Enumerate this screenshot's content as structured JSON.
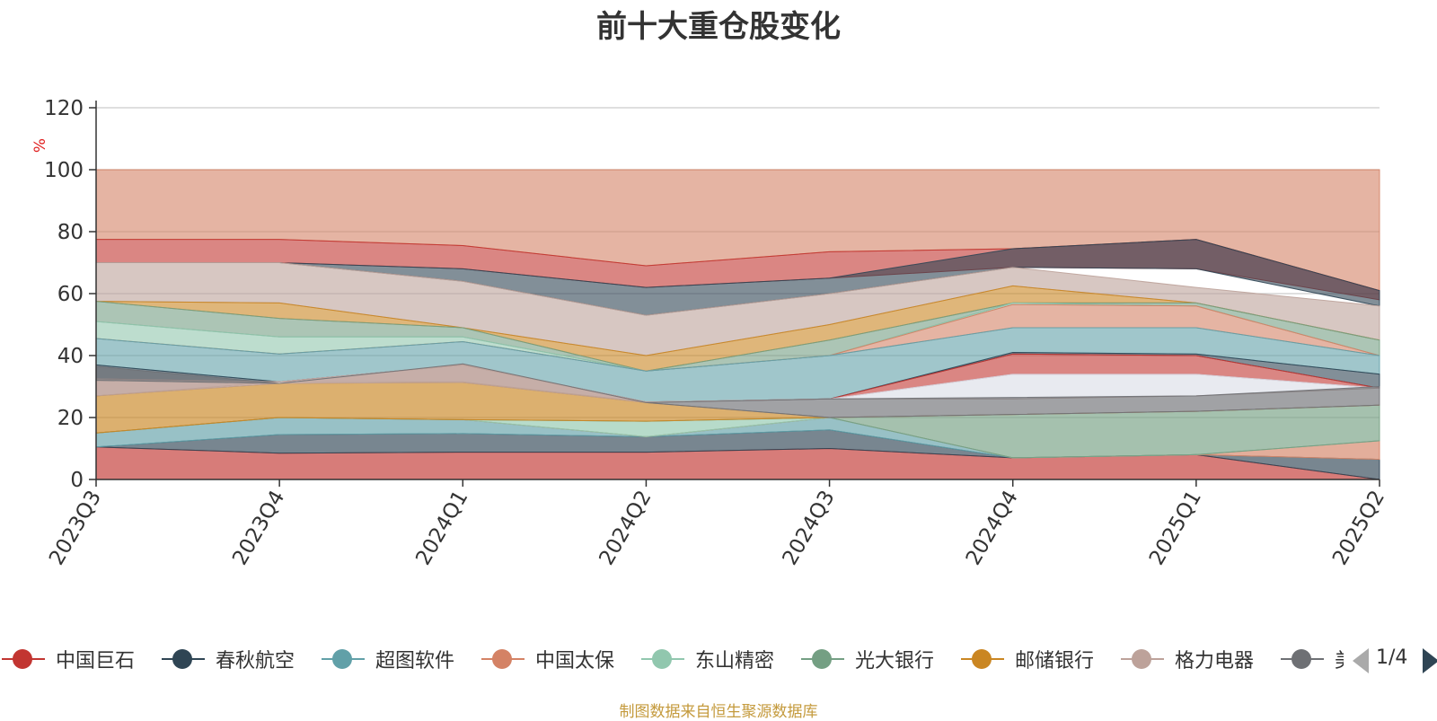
{
  "chart_data": {
    "type": "area",
    "stacked": true,
    "title": "前十大重仓股变化",
    "ylabel": "%",
    "ylim": [
      0,
      120
    ],
    "yticks": [
      0,
      20,
      40,
      60,
      80,
      100,
      120
    ],
    "grid": true,
    "legend_position": "bottom",
    "categories": [
      "2023Q3",
      "2023Q4",
      "2024Q1",
      "2024Q2",
      "2024Q3",
      "2024Q4",
      "2025Q1",
      "2025Q2"
    ],
    "series": [
      {
        "name": "中国巨石",
        "color": "#c23531",
        "values": [
          10.5,
          8.5,
          8.8,
          8.8,
          10,
          7,
          8,
          0
        ]
      },
      {
        "name": "春秋航空",
        "color": "#2f4554",
        "values": [
          0,
          6,
          6,
          5,
          6,
          0,
          0,
          6.5
        ]
      },
      {
        "name": "超图软件",
        "color": "#61a0a8",
        "values": [
          4.5,
          5.5,
          4.5,
          0,
          4,
          0,
          0,
          0
        ]
      },
      {
        "name": "中国太保",
        "color": "#d48265",
        "values": [
          0,
          0,
          0,
          0,
          0,
          0,
          0,
          6
        ]
      },
      {
        "name": "东山精密",
        "color": "#91c7ae",
        "values": [
          0,
          0,
          0,
          5,
          0,
          0,
          0,
          0
        ]
      },
      {
        "name": "光大银行",
        "color": "#749f83",
        "values": [
          0,
          0,
          0,
          0,
          0,
          14,
          14,
          11.5
        ]
      },
      {
        "name": "邮储银行",
        "color": "#ca8622",
        "values": [
          12,
          11,
          12,
          6,
          0,
          0,
          0,
          0
        ]
      },
      {
        "name": "格力电器",
        "color": "#bda29a",
        "values": [
          5,
          0,
          6,
          0,
          0,
          0,
          0,
          0
        ]
      },
      {
        "name": "美的集团",
        "color": "#6e7074",
        "values": [
          4.5,
          0,
          0,
          0,
          6,
          5.5,
          5,
          6
        ]
      }
    ]
  },
  "legend": {
    "page_indicator": "1/4",
    "items": [
      {
        "name": "中国巨石",
        "color": "#c23531"
      },
      {
        "name": "春秋航空",
        "color": "#2f4554"
      },
      {
        "name": "超图软件",
        "color": "#61a0a8"
      },
      {
        "name": "中国太保",
        "color": "#d48265"
      },
      {
        "name": "东山精密",
        "color": "#91c7ae"
      },
      {
        "name": "光大银行",
        "color": "#749f83"
      },
      {
        "name": "邮储银行",
        "color": "#ca8622"
      },
      {
        "name": "格力电器",
        "color": "#bda29a"
      },
      {
        "name": "美",
        "color": "#6e7074"
      }
    ]
  },
  "footer": {
    "source_note": "制图数据来自恒生聚源数据库"
  },
  "decor_bands": [
    {
      "color": "#d48265",
      "upper": [
        100,
        100,
        100,
        100,
        100,
        100,
        100,
        100
      ],
      "lower": [
        77.5,
        77.5,
        75.5,
        69,
        73.5,
        74.5,
        77.5,
        61
      ]
    },
    {
      "color": "#c23531",
      "upper": [
        77.5,
        77.5,
        75.5,
        69,
        73.5,
        74.5,
        77.5,
        61
      ],
      "lower": [
        70,
        70,
        68,
        62,
        65,
        68.5,
        68,
        58
      ]
    },
    {
      "color": "#2f4554",
      "upper": [
        70,
        70,
        68,
        62,
        65,
        74.5,
        77.5,
        61
      ],
      "lower": [
        70,
        70,
        64,
        53,
        60,
        68.5,
        68,
        56
      ]
    },
    {
      "color": "#bda29a",
      "upper": [
        70,
        70,
        64,
        53,
        60,
        68.5,
        62,
        56
      ],
      "lower": [
        57.5,
        57,
        49,
        40,
        50,
        62.5,
        57,
        45
      ]
    },
    {
      "color": "#ca8622",
      "upper": [
        57.5,
        57,
        49,
        40,
        50,
        62.5,
        57,
        45
      ],
      "lower": [
        57.5,
        52,
        49,
        35,
        45,
        57,
        57,
        45
      ]
    },
    {
      "color": "#749f83",
      "upper": [
        57.5,
        52,
        49,
        35,
        45,
        57,
        57,
        45
      ],
      "lower": [
        51,
        46,
        46,
        35,
        40,
        57,
        56,
        40
      ]
    },
    {
      "color": "#91c7ae",
      "upper": [
        51,
        46,
        46,
        35,
        40,
        57,
        56,
        40
      ],
      "lower": [
        45.5,
        40.5,
        44.5,
        35,
        40,
        56.5,
        56,
        40
      ]
    },
    {
      "color": "#d48265",
      "upper": [
        45.5,
        40.5,
        44.5,
        35,
        40,
        56.5,
        56,
        40
      ],
      "lower": [
        45.5,
        40.5,
        44.5,
        35,
        40,
        49,
        49,
        40
      ]
    },
    {
      "color": "#61a0a8",
      "upper": [
        45.5,
        40.5,
        44.5,
        35,
        40,
        49,
        49,
        40
      ],
      "lower": [
        37,
        31.5,
        37,
        25,
        26,
        41,
        40.5,
        34
      ]
    },
    {
      "color": "#2f4554",
      "upper": [
        37,
        31.5,
        37,
        25,
        26,
        41,
        40.5,
        34
      ],
      "lower": [
        32.5,
        31.5,
        37,
        25,
        26,
        40.5,
        40,
        29.5
      ]
    },
    {
      "color": "#c23531",
      "upper": [
        32.5,
        31.5,
        37,
        25,
        26,
        40.5,
        40,
        29.5
      ],
      "lower": [
        32.5,
        31.5,
        37,
        25,
        26,
        34,
        34,
        29.5
      ]
    },
    {
      "color": "#d8dce6",
      "upper": [
        32.5,
        31.5,
        37,
        25,
        26,
        34,
        34,
        29.5
      ],
      "lower": [
        32.5,
        31.5,
        37,
        25,
        26,
        26,
        27,
        29.5
      ]
    },
    {
      "color": "#bda29a",
      "upper": [
        32.5,
        31.5,
        37,
        25,
        26,
        26,
        27,
        29.5
      ],
      "lower": [
        27,
        31.5,
        31.5,
        25,
        26,
        26,
        27,
        29.5
      ]
    }
  ]
}
